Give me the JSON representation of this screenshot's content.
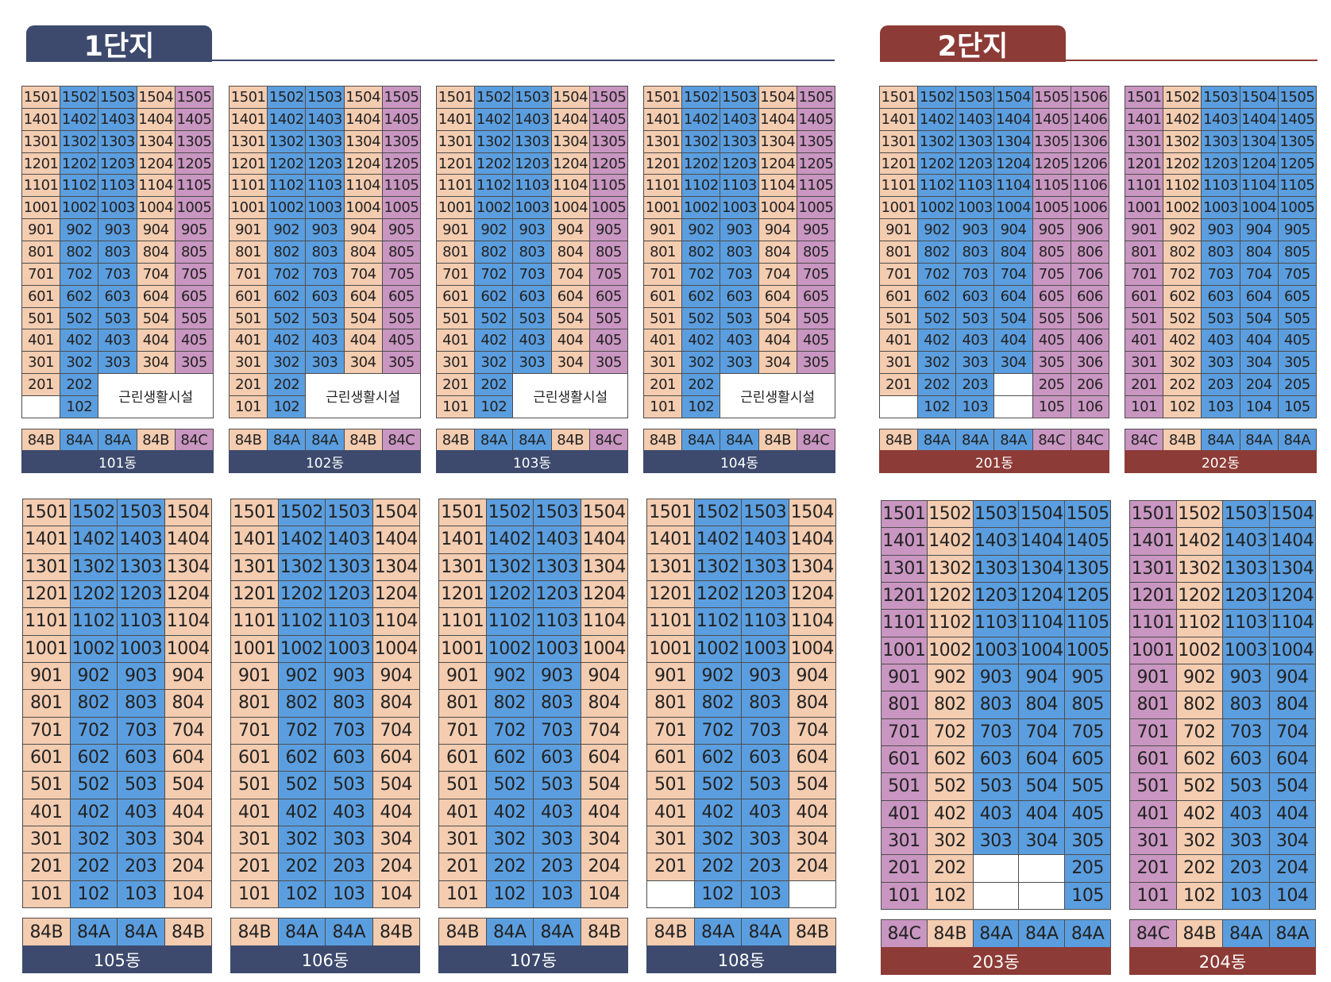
{
  "colors": {
    "tan": "#f4ccb0",
    "blue": "#5b9edf",
    "pink": "#c996c1",
    "navy": "#3d4a6d",
    "maroon": "#8c3b36"
  },
  "sections": [
    {
      "label": "1단지",
      "color": "navy"
    },
    {
      "label": "2단지",
      "color": "maroon"
    }
  ],
  "facility_label": "근린생활시설",
  "buildings": [
    {
      "name": "101동",
      "color": "navy",
      "top_floor": 15,
      "cols": [
        {
          "unit": "01",
          "type": "84B",
          "color": "tan"
        },
        {
          "unit": "02",
          "type": "84A",
          "color": "blue"
        },
        {
          "unit": "03",
          "type": "84A",
          "color": "blue"
        },
        {
          "unit": "04",
          "type": "84B",
          "color": "tan"
        },
        {
          "unit": "05",
          "type": "84C",
          "color": "pink"
        }
      ],
      "floor2": [
        "201",
        "202",
        "F",
        "F",
        "F"
      ],
      "floor1": [
        "X",
        "102",
        "F",
        "F",
        "F"
      ]
    },
    {
      "name": "102동",
      "color": "navy",
      "top_floor": 15,
      "cols": [
        {
          "unit": "01",
          "type": "84B",
          "color": "tan"
        },
        {
          "unit": "02",
          "type": "84A",
          "color": "blue"
        },
        {
          "unit": "03",
          "type": "84A",
          "color": "blue"
        },
        {
          "unit": "04",
          "type": "84B",
          "color": "tan"
        },
        {
          "unit": "05",
          "type": "84C",
          "color": "pink"
        }
      ],
      "floor2": [
        "201",
        "202",
        "F",
        "F",
        "F"
      ],
      "floor1": [
        "101",
        "102",
        "F",
        "F",
        "F"
      ]
    },
    {
      "name": "103동",
      "color": "navy",
      "top_floor": 15,
      "cols": [
        {
          "unit": "01",
          "type": "84B",
          "color": "tan"
        },
        {
          "unit": "02",
          "type": "84A",
          "color": "blue"
        },
        {
          "unit": "03",
          "type": "84A",
          "color": "blue"
        },
        {
          "unit": "04",
          "type": "84B",
          "color": "tan"
        },
        {
          "unit": "05",
          "type": "84C",
          "color": "pink"
        }
      ],
      "floor2": [
        "201",
        "202",
        "F",
        "F",
        "F"
      ],
      "floor1": [
        "101",
        "102",
        "F",
        "F",
        "F"
      ]
    },
    {
      "name": "104동",
      "color": "navy",
      "top_floor": 15,
      "cols": [
        {
          "unit": "01",
          "type": "84B",
          "color": "tan"
        },
        {
          "unit": "02",
          "type": "84A",
          "color": "blue"
        },
        {
          "unit": "03",
          "type": "84A",
          "color": "blue"
        },
        {
          "unit": "04",
          "type": "84B",
          "color": "tan"
        },
        {
          "unit": "05",
          "type": "84C",
          "color": "pink"
        }
      ],
      "floor2": [
        "201",
        "202",
        "F",
        "F",
        "F"
      ],
      "floor1": [
        "101",
        "102",
        "F",
        "F",
        "F"
      ]
    },
    {
      "name": "201동",
      "color": "maroon",
      "top_floor": 15,
      "cols": [
        {
          "unit": "01",
          "type": "84B",
          "color": "tan"
        },
        {
          "unit": "02",
          "type": "84A",
          "color": "blue"
        },
        {
          "unit": "03",
          "type": "84A",
          "color": "blue"
        },
        {
          "unit": "04",
          "type": "84A",
          "color": "blue"
        },
        {
          "unit": "05",
          "type": "84C",
          "color": "pink"
        },
        {
          "unit": "06",
          "type": "84C",
          "color": "pink"
        }
      ],
      "floor2": [
        "201",
        "202",
        "203",
        "X",
        "205",
        "206"
      ],
      "floor1": [
        "X",
        "102",
        "103",
        "X",
        "105",
        "106"
      ]
    },
    {
      "name": "202동",
      "color": "maroon",
      "top_floor": 15,
      "cols": [
        {
          "unit": "01",
          "type": "84C",
          "color": "pink"
        },
        {
          "unit": "02",
          "type": "84B",
          "color": "tan"
        },
        {
          "unit": "03",
          "type": "84A",
          "color": "blue"
        },
        {
          "unit": "04",
          "type": "84A",
          "color": "blue"
        },
        {
          "unit": "05",
          "type": "84A",
          "color": "blue"
        }
      ],
      "floor2": [
        "201",
        "202",
        "203",
        "204",
        "205"
      ],
      "floor1": [
        "101",
        "102",
        "103",
        "104",
        "105"
      ]
    },
    {
      "name": "105동",
      "color": "navy",
      "top_floor": 15,
      "cols": [
        {
          "unit": "01",
          "type": "84B",
          "color": "tan"
        },
        {
          "unit": "02",
          "type": "84A",
          "color": "blue"
        },
        {
          "unit": "03",
          "type": "84A",
          "color": "blue"
        },
        {
          "unit": "04",
          "type": "84B",
          "color": "tan"
        }
      ],
      "floor2": [
        "201",
        "202",
        "203",
        "204"
      ],
      "floor1": [
        "101",
        "102",
        "103",
        "104"
      ]
    },
    {
      "name": "106동",
      "color": "navy",
      "top_floor": 15,
      "cols": [
        {
          "unit": "01",
          "type": "84B",
          "color": "tan"
        },
        {
          "unit": "02",
          "type": "84A",
          "color": "blue"
        },
        {
          "unit": "03",
          "type": "84A",
          "color": "blue"
        },
        {
          "unit": "04",
          "type": "84B",
          "color": "tan"
        }
      ],
      "floor2": [
        "201",
        "202",
        "203",
        "204"
      ],
      "floor1": [
        "101",
        "102",
        "103",
        "104"
      ]
    },
    {
      "name": "107동",
      "color": "navy",
      "top_floor": 15,
      "cols": [
        {
          "unit": "01",
          "type": "84B",
          "color": "tan"
        },
        {
          "unit": "02",
          "type": "84A",
          "color": "blue"
        },
        {
          "unit": "03",
          "type": "84A",
          "color": "blue"
        },
        {
          "unit": "04",
          "type": "84B",
          "color": "tan"
        }
      ],
      "floor2": [
        "201",
        "202",
        "203",
        "204"
      ],
      "floor1": [
        "101",
        "102",
        "103",
        "104"
      ]
    },
    {
      "name": "108동",
      "color": "navy",
      "top_floor": 15,
      "cols": [
        {
          "unit": "01",
          "type": "84B",
          "color": "tan"
        },
        {
          "unit": "02",
          "type": "84A",
          "color": "blue"
        },
        {
          "unit": "03",
          "type": "84A",
          "color": "blue"
        },
        {
          "unit": "04",
          "type": "84B",
          "color": "tan"
        }
      ],
      "floor2": [
        "201",
        "202",
        "203",
        "204"
      ],
      "floor1": [
        "X",
        "102",
        "103",
        "X"
      ]
    },
    {
      "name": "203동",
      "color": "maroon",
      "top_floor": 15,
      "cols": [
        {
          "unit": "01",
          "type": "84C",
          "color": "pink"
        },
        {
          "unit": "02",
          "type": "84B",
          "color": "tan"
        },
        {
          "unit": "03",
          "type": "84A",
          "color": "blue"
        },
        {
          "unit": "04",
          "type": "84A",
          "color": "blue"
        },
        {
          "unit": "05",
          "type": "84A",
          "color": "blue"
        }
      ],
      "floor2": [
        "201",
        "202",
        "X",
        "X",
        "205"
      ],
      "floor1": [
        "101",
        "102",
        "X",
        "X",
        "105"
      ]
    },
    {
      "name": "204동",
      "color": "maroon",
      "top_floor": 15,
      "cols": [
        {
          "unit": "01",
          "type": "84C",
          "color": "pink"
        },
        {
          "unit": "02",
          "type": "84B",
          "color": "tan"
        },
        {
          "unit": "03",
          "type": "84A",
          "color": "blue"
        },
        {
          "unit": "04",
          "type": "84A",
          "color": "blue"
        }
      ],
      "floor2": [
        "201",
        "202",
        "203",
        "204"
      ],
      "floor1": [
        "101",
        "102",
        "103",
        "104"
      ]
    }
  ]
}
